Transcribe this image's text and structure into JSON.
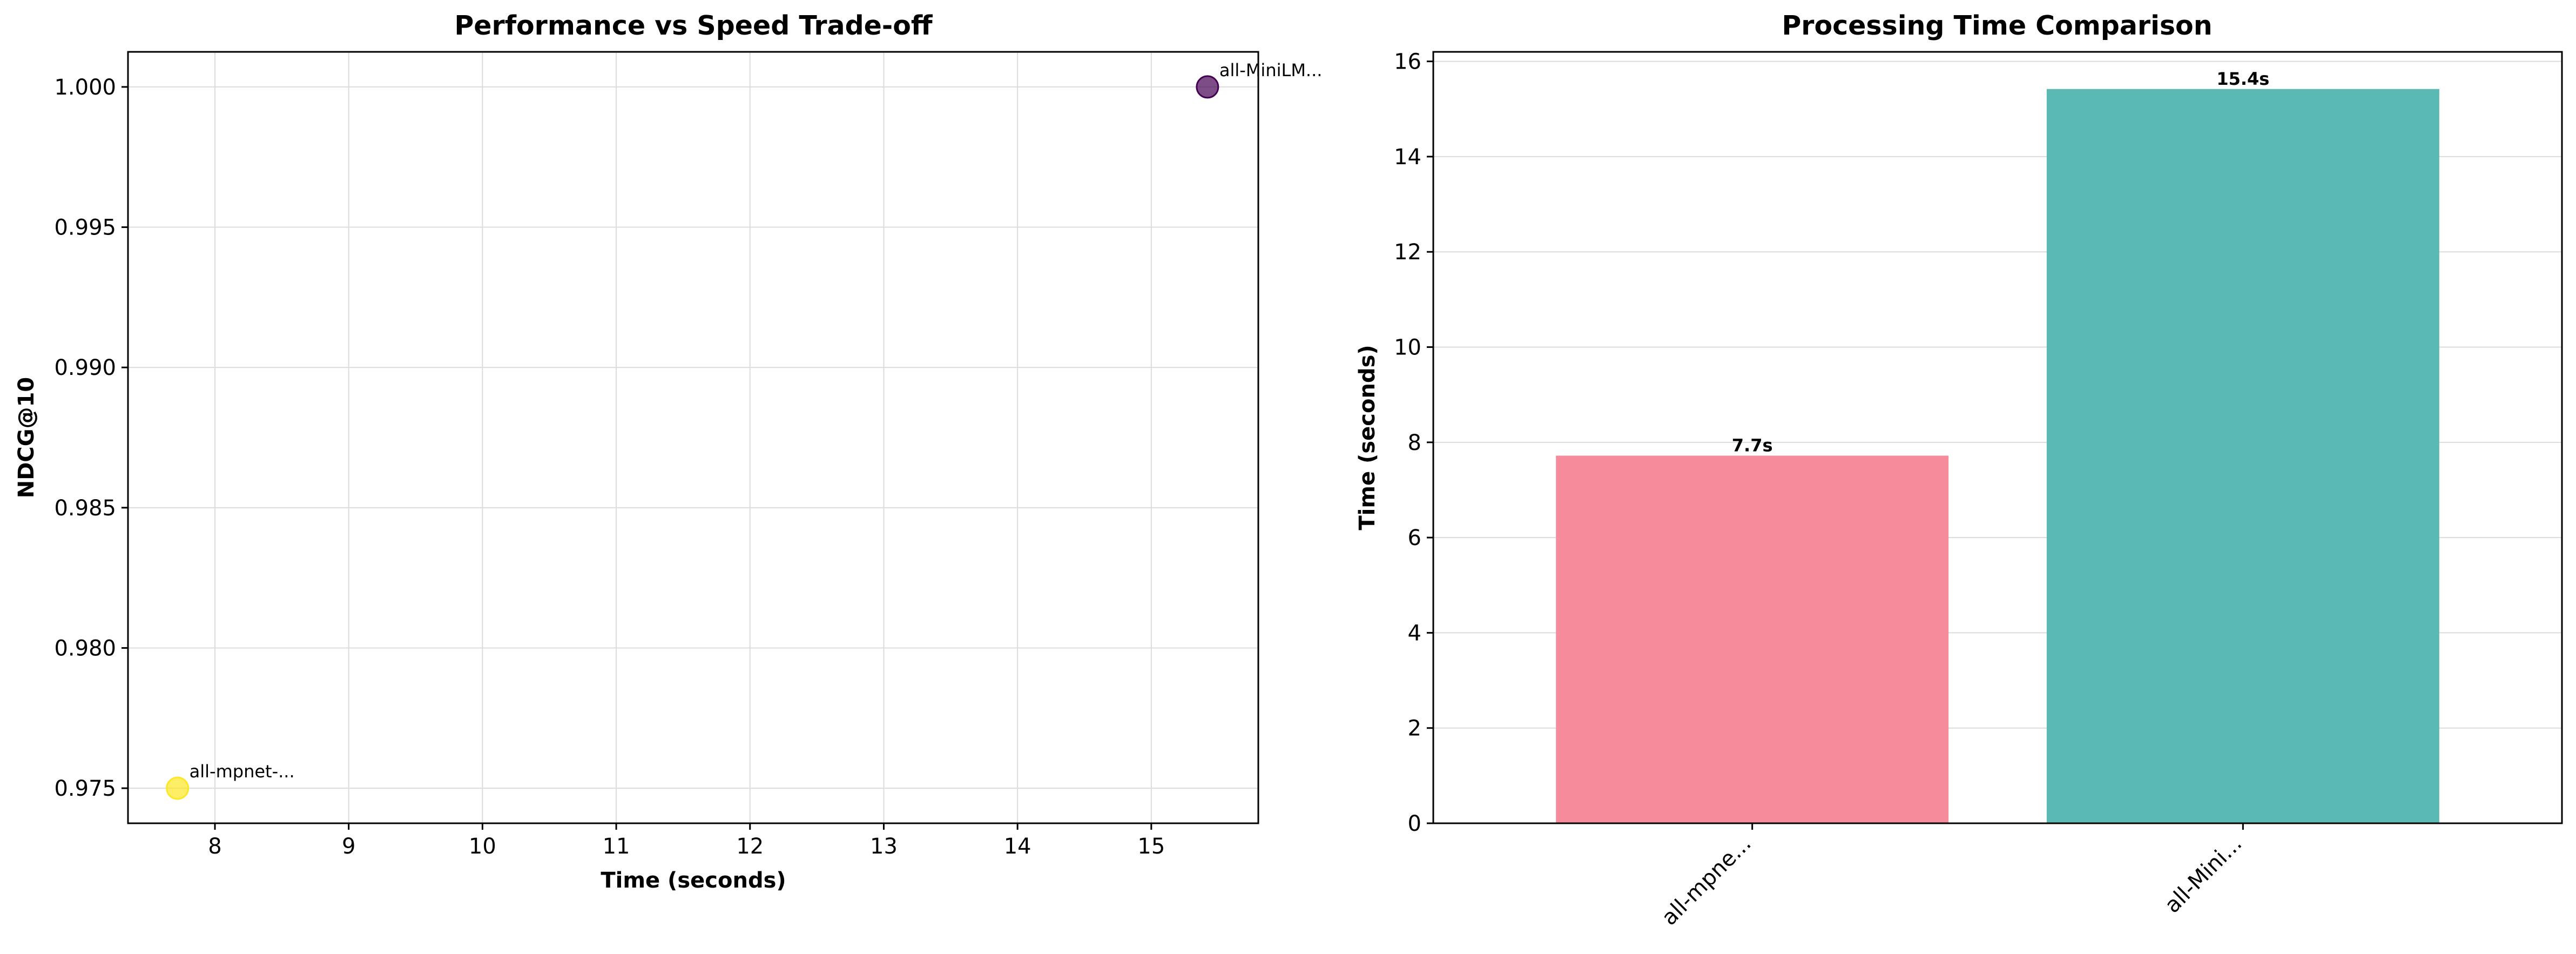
{
  "chart_data": [
    {
      "type": "scatter",
      "title": "Performance vs Speed Trade-off",
      "xlabel": "Time (seconds)",
      "ylabel": "NDCG@10",
      "xlim": [
        7.35,
        15.8
      ],
      "ylim": [
        0.97375,
        1.00125
      ],
      "xticks": [
        "8",
        "9",
        "10",
        "11",
        "12",
        "13",
        "14",
        "15"
      ],
      "yticks": [
        "0.975",
        "0.980",
        "0.985",
        "0.990",
        "0.995",
        "1.000"
      ],
      "grid": true,
      "points": [
        {
          "label": "all-mpnet-...",
          "x": 7.72,
          "y": 0.975,
          "color": "#fde725"
        },
        {
          "label": "all-MiniLM...",
          "x": 15.42,
          "y": 1.0,
          "color": "#440154"
        }
      ]
    },
    {
      "type": "bar",
      "title": "Processing Time Comparison",
      "xlabel": "",
      "ylabel": "Time (seconds)",
      "ylim": [
        0,
        16.2
      ],
      "yticks": [
        "0",
        "2",
        "4",
        "6",
        "8",
        "10",
        "12",
        "14",
        "16"
      ],
      "grid": true,
      "categories": [
        "all-mpne...",
        "all-Mini..."
      ],
      "values": [
        7.72,
        15.42
      ],
      "value_labels": [
        "7.7s",
        "15.4s"
      ],
      "colors": [
        "#f58b9b",
        "#5ab9b2"
      ]
    }
  ]
}
